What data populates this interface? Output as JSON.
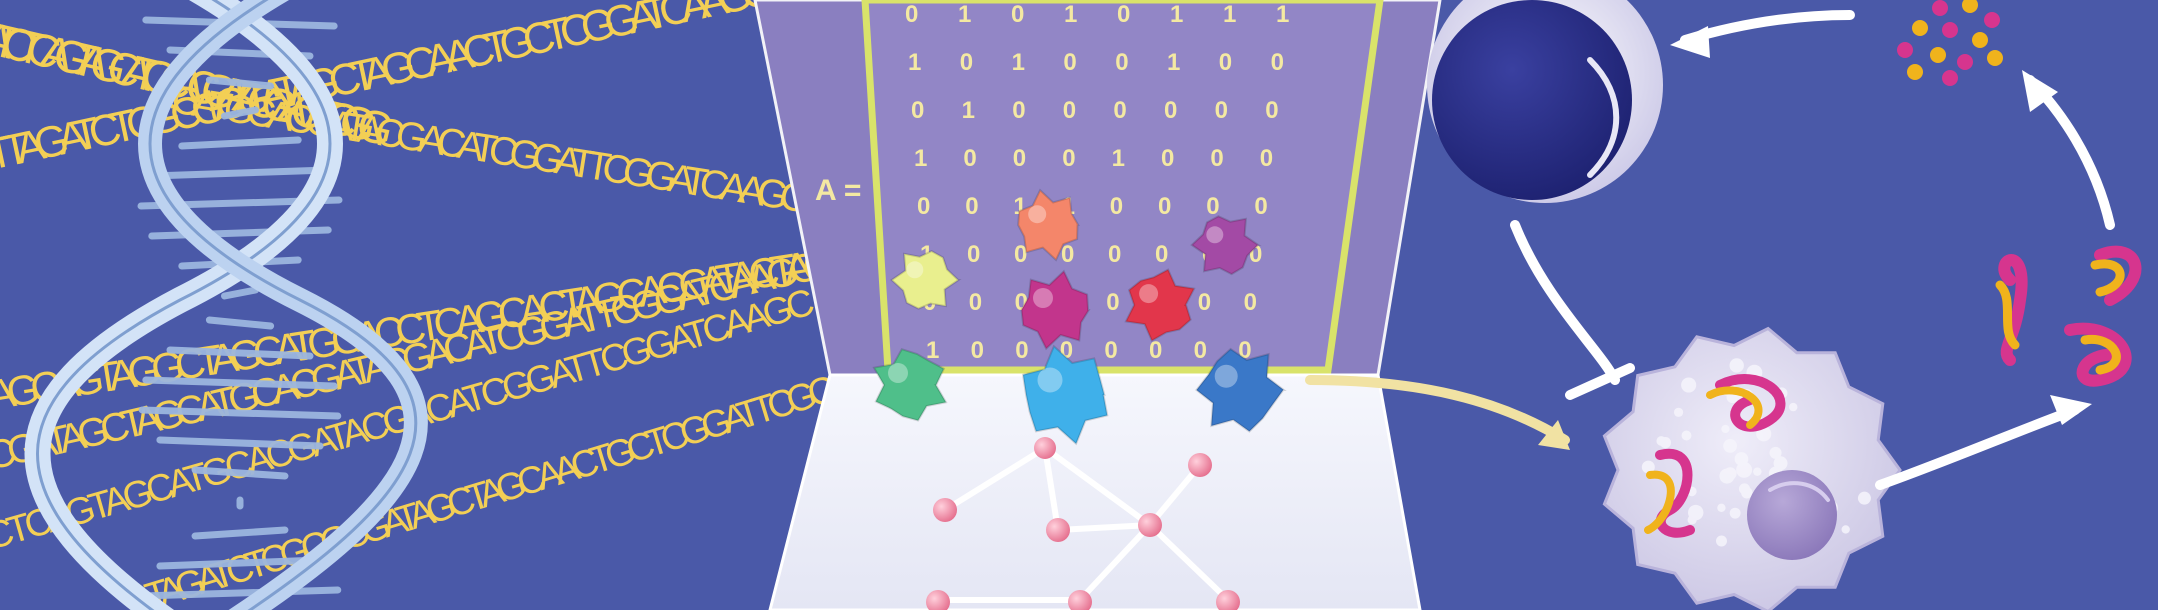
{
  "colors": {
    "background": "#4a59a8",
    "sequence_text": "#f3cf55",
    "dna_strand": "#c9ddf4",
    "matrix_panel": "#8a7fc0",
    "matrix_border": "#d9e36a",
    "matrix_digit": "#f4e9a2",
    "floor": "#eef0fa",
    "network_node": "#ef8fa8",
    "arrow": "#ffffff",
    "flow_arrow": "#f1e2a3",
    "cell": "#d9d6ec",
    "nucleus": "#2a2f86"
  },
  "sequences": [
    "ATCTCAGTAGCATGCACGATACGACATCGG",
    "TTAGATCTCGCGCGATAGCTAGCAACTGCTCGGATCAAGCTAGC",
    "CATGCACGATACGACATCGGATTCGGATCAAGCTAGC",
    "AGCAGTAGGCTAGCATGGACCTCAGCACTAGCACCATACTAGC",
    "CGATAGCTAGCATGCACGATACGACATCGGATTCGGATCAAGCTAGC",
    "CTCAGTAGCATGCACGATACGACATCGGATTCGGATCAAGC",
    "TAGATCTCGCGCGATAGCTAGCAACTGCTCGGATTCGC"
  ],
  "matrix": {
    "label": "A =",
    "rows": [
      [
        "0",
        "1",
        "0",
        "1",
        "0",
        "1",
        "1",
        "1"
      ],
      [
        "1",
        "0",
        "1",
        "0",
        "0",
        "1",
        "0",
        "0"
      ],
      [
        "0",
        "1",
        "0",
        "0",
        "0",
        "0",
        "0",
        "0"
      ],
      [
        "1",
        "0",
        "0",
        "0",
        "1",
        "0",
        "0",
        "0"
      ],
      [
        "0",
        "0",
        "1",
        "1",
        "0",
        "0",
        "0",
        "0"
      ],
      [
        "1",
        "0",
        "0",
        "0",
        "0",
        "0",
        "0",
        "0"
      ],
      [
        "0",
        "0",
        "0",
        "0",
        "0",
        "0",
        "0",
        "0"
      ],
      [
        "1",
        "0",
        "0",
        "0",
        "0",
        "0",
        "0",
        "0"
      ]
    ]
  },
  "icons": {
    "dna": "dna-double-helix",
    "proteins": "protein-blob",
    "network": "interaction-network",
    "immune_cell": "lymphocyte-cell",
    "apoptotic_cell": "damaged-cell",
    "molecules": "small-molecule-cluster",
    "peptides": "misfolded-protein"
  }
}
